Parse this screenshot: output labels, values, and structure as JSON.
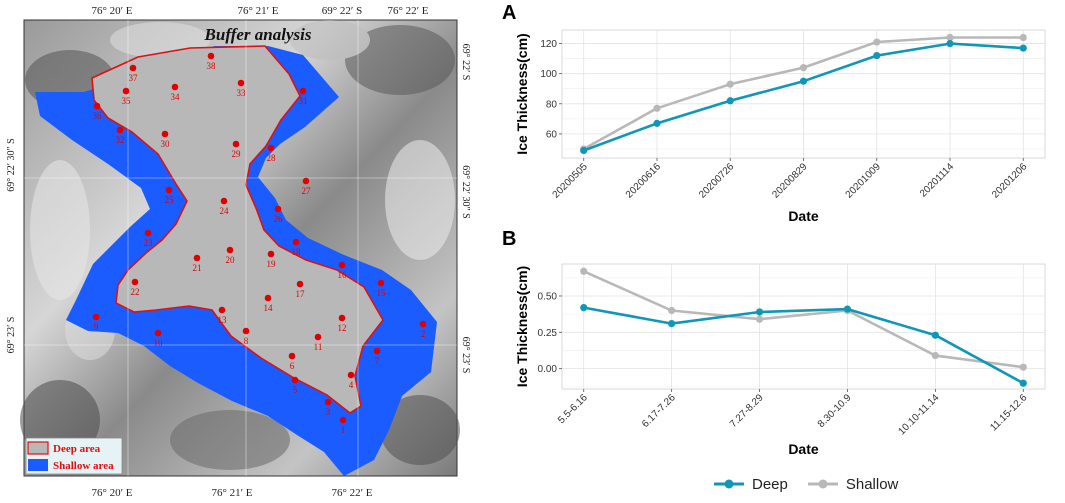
{
  "map": {
    "title": "Buffer analysis",
    "top_lon_labels": [
      "76° 20′ E",
      "76° 21′ E",
      "69° 22′ S",
      "76° 22′ E"
    ],
    "bottom_lon_labels": [
      "76° 20′ E",
      "76° 21′ E",
      "76° 22′ E"
    ],
    "left_lat_labels": [
      "69° 22′ 30″ S",
      "69° 23′ S"
    ],
    "right_lat_labels": [
      "69° 22′ S",
      "69° 22′ 30″ S",
      "69° 23′ S"
    ],
    "legend": {
      "deep": "Deep area",
      "shallow": "Shallow area"
    },
    "points": [
      "37",
      "38",
      "35",
      "34",
      "33",
      "36",
      "31",
      "32",
      "29",
      "30",
      "28",
      "27",
      "25",
      "26",
      "24",
      "23",
      "18",
      "19",
      "20",
      "21",
      "22",
      "16",
      "17",
      "15",
      "14",
      "13",
      "12",
      "10",
      "11",
      "8",
      "9",
      "6",
      "7",
      "5",
      "4",
      "3",
      "1",
      "2"
    ],
    "colors": {
      "deep_fill": "#b8b8b8",
      "deep_border": "#e01010",
      "shallow_fill": "#1a5cff",
      "point": "#e00000"
    }
  },
  "panel_a_label": "A",
  "panel_b_label": "B",
  "legend": {
    "deep": "Deep",
    "shallow": "Shallow"
  },
  "chart_data": [
    {
      "type": "line",
      "panel": "A",
      "categories": [
        "20200505",
        "20200616",
        "20200726",
        "20200829",
        "20201009",
        "20201114",
        "20201206"
      ],
      "series": [
        {
          "name": "Deep",
          "color": "#1097b8",
          "values": [
            49,
            67,
            82,
            95,
            112,
            120,
            117
          ]
        },
        {
          "name": "Shallow",
          "color": "#b8b8b8",
          "values": [
            50,
            77,
            93,
            104,
            121,
            124,
            124
          ]
        }
      ],
      "xlabel": "Date",
      "ylabel": "Ice Thickness(cm)",
      "ylim": [
        44,
        129
      ],
      "yticks": [
        60,
        80,
        100,
        120
      ]
    },
    {
      "type": "line",
      "panel": "B",
      "categories": [
        "5.5-6.16",
        "6.17-7.26",
        "7.27-8.29",
        "8.30-10.9",
        "10.10-11.14",
        "11.15-12.6"
      ],
      "series": [
        {
          "name": "Deep",
          "color": "#1097b8",
          "values": [
            0.42,
            0.31,
            0.39,
            0.41,
            0.23,
            -0.1
          ]
        },
        {
          "name": "Shallow",
          "color": "#b8b8b8",
          "values": [
            0.67,
            0.4,
            0.34,
            0.4,
            0.09,
            0.01
          ]
        }
      ],
      "xlabel": "Date",
      "ylabel": "Ice Thickness(cm)",
      "ylim": [
        -0.14,
        0.72
      ],
      "yticks": [
        0.0,
        0.25,
        0.5
      ],
      "ytick_labels": [
        "0.00",
        "0.25",
        "0.50"
      ]
    }
  ]
}
